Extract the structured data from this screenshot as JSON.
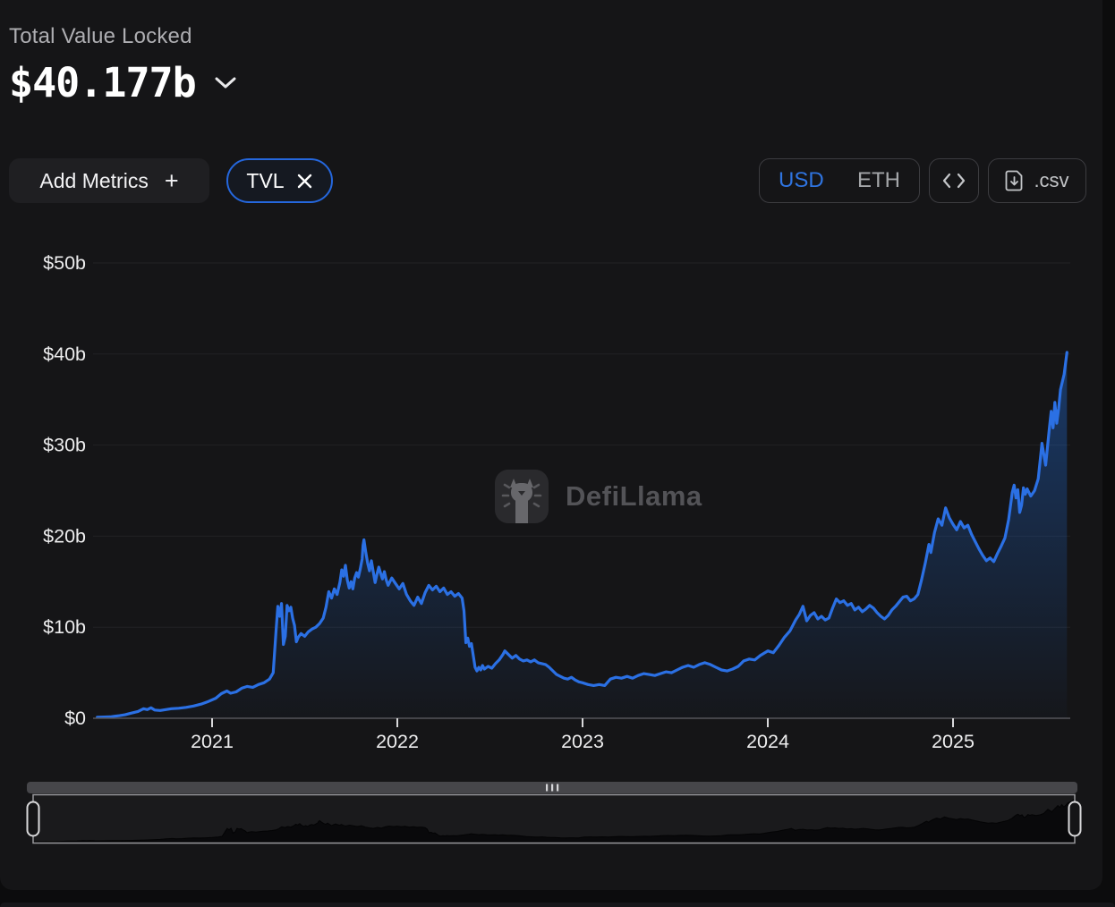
{
  "header": {
    "label": "Total Value Locked",
    "value": "$40.177b"
  },
  "toolbar": {
    "add_metrics_label": "Add Metrics",
    "add_metrics_plus": "+",
    "metric_pill_label": "TVL",
    "currency_options": [
      "USD",
      "ETH"
    ],
    "currency_selected": "USD",
    "csv_label": ".csv"
  },
  "watermark": {
    "text": "DefiLlama"
  },
  "colors": {
    "accent_blue": "#2172E5",
    "usd_text": "#2f74e0",
    "card_bg": "#151517",
    "page_bg": "#0c0c0d",
    "axis_line": "#55555a",
    "gridline": "#222225",
    "tick_text": "#ededee",
    "secondary_text": "#aeaeb2"
  },
  "chart_data": {
    "type": "area",
    "title": "Total Value Locked (TVL)",
    "unit": "USD billions",
    "legend": [
      "TVL"
    ],
    "grid": true,
    "ylim": [
      0,
      50
    ],
    "xlim": [
      2020.38,
      2025.615
    ],
    "y_ticks": [
      {
        "v": 0,
        "label": "$0"
      },
      {
        "v": 10,
        "label": "$10b"
      },
      {
        "v": 20,
        "label": "$20b"
      },
      {
        "v": 30,
        "label": "$30b"
      },
      {
        "v": 40,
        "label": "$40b"
      },
      {
        "v": 50,
        "label": "$50b"
      }
    ],
    "x_ticks": [
      {
        "t": 2021,
        "label": "2021"
      },
      {
        "t": 2022,
        "label": "2022"
      },
      {
        "t": 2023,
        "label": "2023"
      },
      {
        "t": 2024,
        "label": "2024"
      },
      {
        "t": 2025,
        "label": "2025"
      }
    ],
    "series": [
      {
        "name": "TVL",
        "points": [
          [
            2020.38,
            0.12
          ],
          [
            2020.45,
            0.16
          ],
          [
            2020.5,
            0.28
          ],
          [
            2020.53,
            0.38
          ],
          [
            2020.56,
            0.55
          ],
          [
            2020.6,
            0.75
          ],
          [
            2020.63,
            1.05
          ],
          [
            2020.65,
            0.95
          ],
          [
            2020.67,
            1.15
          ],
          [
            2020.69,
            0.9
          ],
          [
            2020.72,
            0.85
          ],
          [
            2020.75,
            0.95
          ],
          [
            2020.78,
            1.05
          ],
          [
            2020.82,
            1.1
          ],
          [
            2020.86,
            1.2
          ],
          [
            2020.9,
            1.35
          ],
          [
            2020.94,
            1.55
          ],
          [
            2020.98,
            1.85
          ],
          [
            2021.02,
            2.2
          ],
          [
            2021.05,
            2.7
          ],
          [
            2021.08,
            3.0
          ],
          [
            2021.1,
            2.75
          ],
          [
            2021.13,
            2.9
          ],
          [
            2021.16,
            3.3
          ],
          [
            2021.19,
            3.5
          ],
          [
            2021.22,
            3.4
          ],
          [
            2021.25,
            3.7
          ],
          [
            2021.28,
            3.9
          ],
          [
            2021.31,
            4.3
          ],
          [
            2021.33,
            5.0
          ],
          [
            2021.345,
            9.5
          ],
          [
            2021.355,
            12.3
          ],
          [
            2021.365,
            11.2
          ],
          [
            2021.375,
            12.6
          ],
          [
            2021.385,
            8.1
          ],
          [
            2021.395,
            9.0
          ],
          [
            2021.405,
            12.4
          ],
          [
            2021.415,
            11.8
          ],
          [
            2021.425,
            12.2
          ],
          [
            2021.435,
            11.0
          ],
          [
            2021.445,
            10.2
          ],
          [
            2021.455,
            8.4
          ],
          [
            2021.465,
            8.9
          ],
          [
            2021.48,
            9.3
          ],
          [
            2021.5,
            9.0
          ],
          [
            2021.52,
            9.5
          ],
          [
            2021.54,
            9.8
          ],
          [
            2021.56,
            10.0
          ],
          [
            2021.58,
            10.4
          ],
          [
            2021.6,
            11.0
          ],
          [
            2021.615,
            12.2
          ],
          [
            2021.63,
            13.9
          ],
          [
            2021.645,
            13.2
          ],
          [
            2021.66,
            14.2
          ],
          [
            2021.675,
            13.6
          ],
          [
            2021.69,
            14.9
          ],
          [
            2021.7,
            16.3
          ],
          [
            2021.71,
            15.6
          ],
          [
            2021.72,
            16.8
          ],
          [
            2021.73,
            15.2
          ],
          [
            2021.74,
            14.3
          ],
          [
            2021.75,
            15.0
          ],
          [
            2021.76,
            14.2
          ],
          [
            2021.77,
            15.4
          ],
          [
            2021.78,
            16.0
          ],
          [
            2021.79,
            15.5
          ],
          [
            2021.8,
            16.4
          ],
          [
            2021.81,
            17.5
          ],
          [
            2021.815,
            19.0
          ],
          [
            2021.82,
            19.6
          ],
          [
            2021.83,
            18.2
          ],
          [
            2021.84,
            17.0
          ],
          [
            2021.85,
            16.2
          ],
          [
            2021.86,
            17.3
          ],
          [
            2021.87,
            16.1
          ],
          [
            2021.88,
            14.9
          ],
          [
            2021.89,
            15.8
          ],
          [
            2021.9,
            16.6
          ],
          [
            2021.91,
            15.9
          ],
          [
            2021.92,
            15.3
          ],
          [
            2021.93,
            16.1
          ],
          [
            2021.94,
            15.2
          ],
          [
            2021.95,
            14.6
          ],
          [
            2021.97,
            15.4
          ],
          [
            2021.99,
            14.8
          ],
          [
            2022.01,
            14.2
          ],
          [
            2022.03,
            14.8
          ],
          [
            2022.05,
            13.6
          ],
          [
            2022.07,
            12.9
          ],
          [
            2022.09,
            12.4
          ],
          [
            2022.11,
            13.3
          ],
          [
            2022.13,
            12.6
          ],
          [
            2022.15,
            13.8
          ],
          [
            2022.17,
            14.6
          ],
          [
            2022.19,
            14.1
          ],
          [
            2022.21,
            14.5
          ],
          [
            2022.23,
            13.9
          ],
          [
            2022.25,
            14.3
          ],
          [
            2022.27,
            13.6
          ],
          [
            2022.29,
            13.9
          ],
          [
            2022.31,
            13.4
          ],
          [
            2022.33,
            13.7
          ],
          [
            2022.35,
            13.2
          ],
          [
            2022.36,
            11.8
          ],
          [
            2022.37,
            8.3
          ],
          [
            2022.38,
            8.8
          ],
          [
            2022.39,
            7.9
          ],
          [
            2022.4,
            8.2
          ],
          [
            2022.42,
            5.6
          ],
          [
            2022.43,
            5.2
          ],
          [
            2022.44,
            5.6
          ],
          [
            2022.45,
            5.3
          ],
          [
            2022.46,
            5.8
          ],
          [
            2022.47,
            5.4
          ],
          [
            2022.49,
            5.7
          ],
          [
            2022.51,
            5.5
          ],
          [
            2022.53,
            6.0
          ],
          [
            2022.55,
            6.4
          ],
          [
            2022.57,
            7.0
          ],
          [
            2022.58,
            7.4
          ],
          [
            2022.6,
            7.0
          ],
          [
            2022.62,
            6.6
          ],
          [
            2022.64,
            6.9
          ],
          [
            2022.66,
            6.5
          ],
          [
            2022.68,
            6.3
          ],
          [
            2022.7,
            6.4
          ],
          [
            2022.72,
            6.2
          ],
          [
            2022.74,
            6.4
          ],
          [
            2022.76,
            6.1
          ],
          [
            2022.78,
            6.0
          ],
          [
            2022.8,
            5.9
          ],
          [
            2022.82,
            5.6
          ],
          [
            2022.84,
            5.2
          ],
          [
            2022.86,
            4.8
          ],
          [
            2022.88,
            4.6
          ],
          [
            2022.9,
            4.4
          ],
          [
            2022.92,
            4.3
          ],
          [
            2022.94,
            4.5
          ],
          [
            2022.96,
            4.2
          ],
          [
            2022.98,
            4.0
          ],
          [
            2023.0,
            3.9
          ],
          [
            2023.03,
            3.7
          ],
          [
            2023.06,
            3.6
          ],
          [
            2023.09,
            3.7
          ],
          [
            2023.12,
            3.6
          ],
          [
            2023.15,
            4.3
          ],
          [
            2023.18,
            4.5
          ],
          [
            2023.21,
            4.4
          ],
          [
            2023.24,
            4.6
          ],
          [
            2023.27,
            4.4
          ],
          [
            2023.3,
            4.7
          ],
          [
            2023.33,
            4.9
          ],
          [
            2023.36,
            4.8
          ],
          [
            2023.39,
            4.7
          ],
          [
            2023.42,
            4.9
          ],
          [
            2023.45,
            5.1
          ],
          [
            2023.48,
            5.0
          ],
          [
            2023.51,
            5.3
          ],
          [
            2023.54,
            5.6
          ],
          [
            2023.57,
            5.8
          ],
          [
            2023.6,
            5.6
          ],
          [
            2023.63,
            5.9
          ],
          [
            2023.66,
            6.1
          ],
          [
            2023.69,
            5.9
          ],
          [
            2023.72,
            5.6
          ],
          [
            2023.75,
            5.3
          ],
          [
            2023.78,
            5.2
          ],
          [
            2023.81,
            5.4
          ],
          [
            2023.84,
            5.7
          ],
          [
            2023.87,
            6.3
          ],
          [
            2023.9,
            6.5
          ],
          [
            2023.93,
            6.4
          ],
          [
            2023.96,
            6.9
          ],
          [
            2024.0,
            7.4
          ],
          [
            2024.03,
            7.2
          ],
          [
            2024.06,
            8.0
          ],
          [
            2024.09,
            8.9
          ],
          [
            2024.12,
            9.6
          ],
          [
            2024.15,
            10.8
          ],
          [
            2024.17,
            11.4
          ],
          [
            2024.19,
            12.3
          ],
          [
            2024.21,
            10.7
          ],
          [
            2024.23,
            11.3
          ],
          [
            2024.25,
            11.6
          ],
          [
            2024.27,
            10.9
          ],
          [
            2024.29,
            11.2
          ],
          [
            2024.31,
            10.8
          ],
          [
            2024.33,
            11.0
          ],
          [
            2024.35,
            12.1
          ],
          [
            2024.37,
            13.1
          ],
          [
            2024.39,
            12.7
          ],
          [
            2024.41,
            12.9
          ],
          [
            2024.43,
            12.4
          ],
          [
            2024.45,
            12.6
          ],
          [
            2024.47,
            11.9
          ],
          [
            2024.49,
            12.2
          ],
          [
            2024.51,
            11.7
          ],
          [
            2024.53,
            12.0
          ],
          [
            2024.55,
            12.4
          ],
          [
            2024.57,
            12.1
          ],
          [
            2024.59,
            11.6
          ],
          [
            2024.61,
            11.2
          ],
          [
            2024.63,
            10.9
          ],
          [
            2024.65,
            11.3
          ],
          [
            2024.67,
            11.9
          ],
          [
            2024.69,
            12.3
          ],
          [
            2024.71,
            12.8
          ],
          [
            2024.73,
            13.3
          ],
          [
            2024.75,
            13.4
          ],
          [
            2024.77,
            12.9
          ],
          [
            2024.79,
            13.1
          ],
          [
            2024.81,
            13.6
          ],
          [
            2024.83,
            15.2
          ],
          [
            2024.85,
            17.0
          ],
          [
            2024.87,
            19.1
          ],
          [
            2024.88,
            18.2
          ],
          [
            2024.9,
            20.4
          ],
          [
            2024.92,
            21.9
          ],
          [
            2024.94,
            21.2
          ],
          [
            2024.96,
            23.1
          ],
          [
            2024.98,
            22.0
          ],
          [
            2025.0,
            21.3
          ],
          [
            2025.02,
            20.7
          ],
          [
            2025.04,
            21.6
          ],
          [
            2025.06,
            20.9
          ],
          [
            2025.08,
            21.2
          ],
          [
            2025.1,
            20.2
          ],
          [
            2025.12,
            19.4
          ],
          [
            2025.14,
            18.6
          ],
          [
            2025.16,
            17.9
          ],
          [
            2025.18,
            17.3
          ],
          [
            2025.2,
            17.6
          ],
          [
            2025.22,
            17.2
          ],
          [
            2025.24,
            18.1
          ],
          [
            2025.26,
            18.9
          ],
          [
            2025.28,
            19.8
          ],
          [
            2025.3,
            21.8
          ],
          [
            2025.32,
            24.8
          ],
          [
            2025.33,
            25.6
          ],
          [
            2025.34,
            24.2
          ],
          [
            2025.35,
            25.1
          ],
          [
            2025.36,
            22.6
          ],
          [
            2025.37,
            23.4
          ],
          [
            2025.38,
            25.3
          ],
          [
            2025.39,
            24.6
          ],
          [
            2025.4,
            25.2
          ],
          [
            2025.42,
            24.4
          ],
          [
            2025.44,
            25.0
          ],
          [
            2025.46,
            26.3
          ],
          [
            2025.48,
            30.2
          ],
          [
            2025.5,
            27.8
          ],
          [
            2025.52,
            31.8
          ],
          [
            2025.53,
            33.7
          ],
          [
            2025.54,
            31.9
          ],
          [
            2025.55,
            34.7
          ],
          [
            2025.56,
            32.4
          ],
          [
            2025.57,
            34.0
          ],
          [
            2025.58,
            36.1
          ],
          [
            2025.6,
            37.8
          ],
          [
            2025.615,
            40.18
          ]
        ]
      }
    ]
  }
}
